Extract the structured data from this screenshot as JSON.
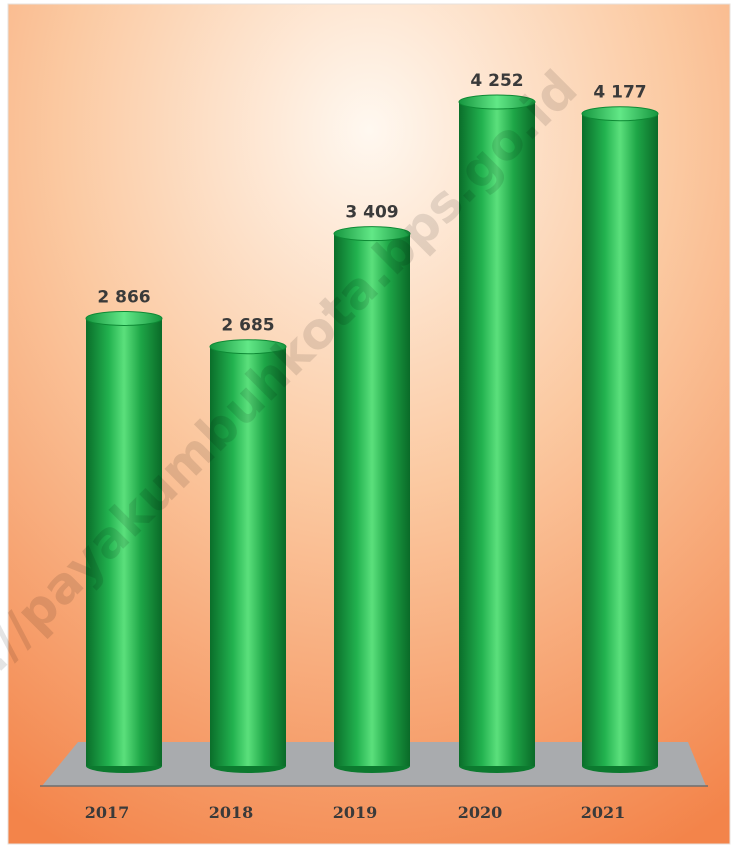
{
  "chart_data": {
    "type": "bar",
    "categories": [
      "2017",
      "2018",
      "2019",
      "2020",
      "2021"
    ],
    "values": [
      2866,
      2685,
      3409,
      4252,
      4177
    ],
    "value_labels": [
      "2 866",
      "2 685",
      "3 409",
      "4 252",
      "4 177"
    ],
    "title": "",
    "xlabel": "",
    "ylabel": "",
    "ylim": [
      0,
      4252
    ],
    "grid": false,
    "legend": "none",
    "colors": {
      "bar": "#1faa4a",
      "bar_highlight": "#7ef09a",
      "bar_shadow": "#0a6e2a",
      "background_top": "#fff6ee",
      "background_bottom": "#f5894a",
      "floor": "#a9abae"
    }
  },
  "watermark": "https://payakumbuhkota.bps.go.id"
}
